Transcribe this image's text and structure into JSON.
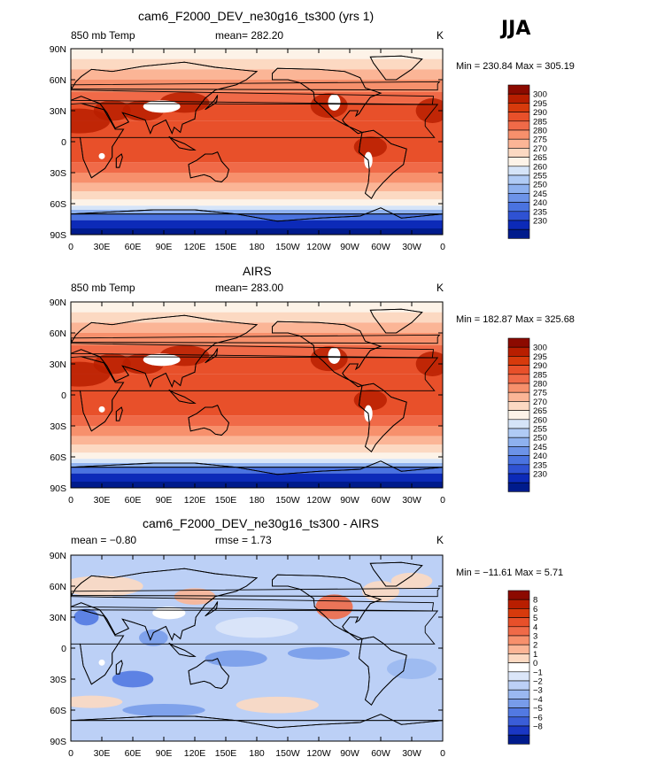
{
  "season": "JJA",
  "lat_ticks": [
    "90N",
    "60N",
    "30N",
    "0",
    "30S",
    "60S",
    "90S"
  ],
  "lon_ticks": [
    "0",
    "30E",
    "60E",
    "90E",
    "120E",
    "150E",
    "180",
    "150W",
    "120W",
    "90W",
    "60W",
    "30W",
    "0"
  ],
  "panels": [
    {
      "id": "model",
      "title": "cam6_F2000_DEV_ne30g16_ts300 (yrs 1)",
      "left_label": "850 mb Temp",
      "center_label": "mean= 282.20",
      "right_label": "K",
      "minmax": "Min = 230.84 Max = 305.19",
      "colorbar_labels": [
        "300",
        "295",
        "290",
        "285",
        "280",
        "275",
        "270",
        "265",
        "260",
        "255",
        "250",
        "245",
        "240",
        "235",
        "230"
      ],
      "colors": [
        "#8c0a00",
        "#b81e00",
        "#d73a0c",
        "#e8502a",
        "#f06a48",
        "#f7906c",
        "#fbb596",
        "#fcd9c2",
        "#fdf3e8",
        "#d5e4f8",
        "#b0cbf5",
        "#8eb1ef",
        "#6c93e8",
        "#4a73e0",
        "#2f52d3",
        "#0c2ab8",
        "#001b8c"
      ],
      "warm_field": true
    },
    {
      "id": "obs",
      "title": "AIRS",
      "left_label": "850 mb Temp",
      "center_label": "mean= 283.00",
      "right_label": "K",
      "minmax": "Min = 182.87 Max = 325.68",
      "colorbar_labels": [
        "300",
        "295",
        "290",
        "285",
        "280",
        "275",
        "270",
        "265",
        "260",
        "255",
        "250",
        "245",
        "240",
        "235",
        "230"
      ],
      "colors": [
        "#8c0a00",
        "#b81e00",
        "#d73a0c",
        "#e8502a",
        "#f06a48",
        "#f7906c",
        "#fbb596",
        "#fcd9c2",
        "#fdf3e8",
        "#d5e4f8",
        "#b0cbf5",
        "#8eb1ef",
        "#6c93e8",
        "#4a73e0",
        "#2f52d3",
        "#0c2ab8",
        "#001b8c"
      ],
      "warm_field": true
    },
    {
      "id": "diff",
      "title": "cam6_F2000_DEV_ne30g16_ts300 - AIRS",
      "left_label": "mean =  −0.80",
      "center_label": "rmse =   1.73",
      "right_label": "K",
      "minmax": "Min = −11.61 Max =   5.71",
      "colorbar_labels": [
        "8",
        "6",
        "5",
        "4",
        "3",
        "2",
        "1",
        "0",
        "−1",
        "−2",
        "−3",
        "−4",
        "−5",
        "−6",
        "−8"
      ],
      "colors": [
        "#8c0a00",
        "#b81e00",
        "#d73a0c",
        "#e8502a",
        "#f06a48",
        "#f7906c",
        "#fbb596",
        "#fcd9c2",
        "#ffffff",
        "#dbe6f9",
        "#bcd0f6",
        "#9ab8f1",
        "#789cea",
        "#5279e2",
        "#3a5dd8",
        "#1a37c4",
        "#001b8c"
      ],
      "warm_field": false
    }
  ]
}
